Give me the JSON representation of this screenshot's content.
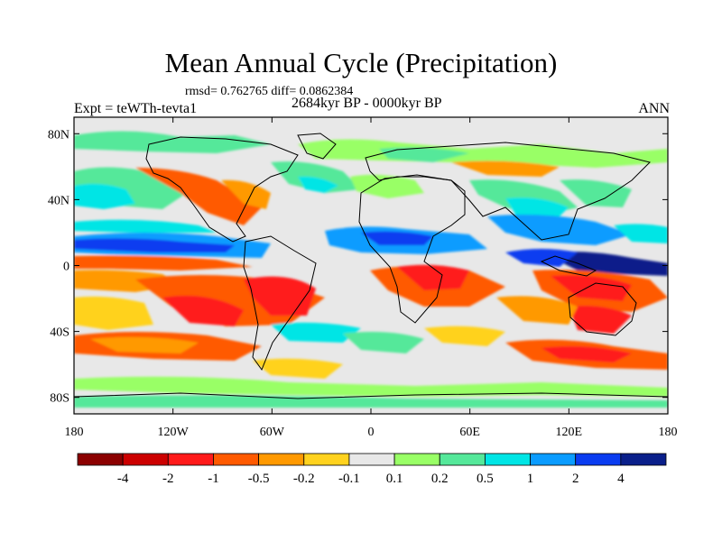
{
  "header": {
    "title": "Mean Annual Cycle (Precipitation)",
    "stats": "rmsd= 0.762765 diff= 0.0862384",
    "period": "2684kyr BP - 0000kyr BP",
    "experiment": "Expt = teWTh-tevta1",
    "season": "ANN"
  },
  "map": {
    "lat_ticks": [
      {
        "value": 80,
        "label": "80N"
      },
      {
        "value": 40,
        "label": "40N"
      },
      {
        "value": 0,
        "label": "0"
      },
      {
        "value": -40,
        "label": "40S"
      },
      {
        "value": -80,
        "label": "80S"
      }
    ],
    "lon_ticks": [
      {
        "value": -180,
        "label": "180"
      },
      {
        "value": -120,
        "label": "120W"
      },
      {
        "value": -60,
        "label": "60W"
      },
      {
        "value": 0,
        "label": "0"
      },
      {
        "value": 60,
        "label": "60E"
      },
      {
        "value": 120,
        "label": "120E"
      },
      {
        "value": 180,
        "label": "180"
      }
    ]
  },
  "colorbar": {
    "colors": [
      "#8b0000",
      "#cc0000",
      "#ff1a1a",
      "#ff5a00",
      "#ff9900",
      "#ffd21e",
      "#e8e8e8",
      "#99ff66",
      "#55e89a",
      "#00e5e5",
      "#0b9cff",
      "#0a3cf0",
      "#0a1f8a"
    ],
    "labels": [
      "-4",
      "-2",
      "-1",
      "-0.5",
      "-0.2",
      "-0.1",
      "0.1",
      "0.2",
      "0.5",
      "1",
      "2",
      "4"
    ]
  }
}
